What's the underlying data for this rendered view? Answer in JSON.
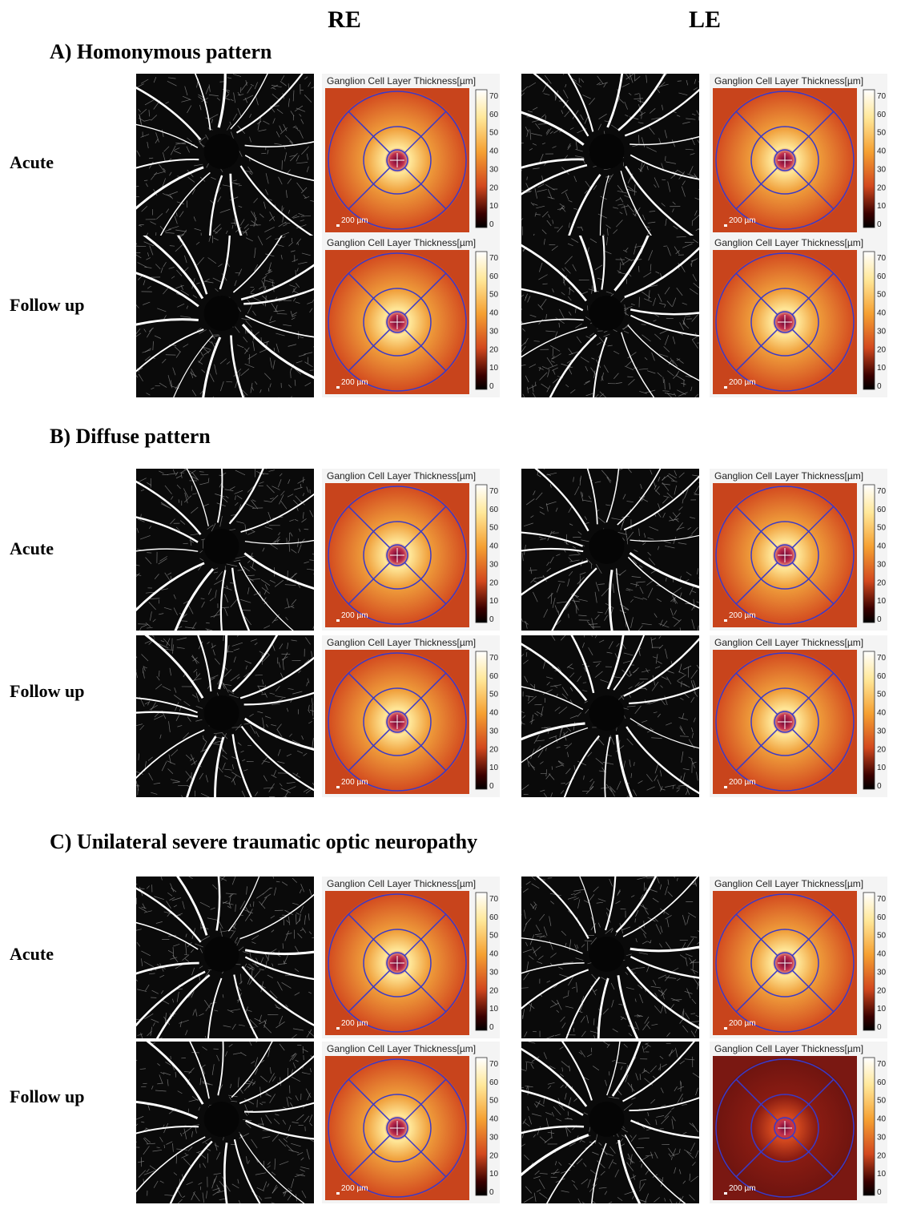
{
  "headers": {
    "re": "RE",
    "le": "LE"
  },
  "gcl_title": "Ganglion Cell Layer Thickness[µm]",
  "scale_bar_label": "200 µm",
  "colorbar_ticks": [
    "70",
    "60",
    "50",
    "40",
    "30",
    "20",
    "10",
    "0"
  ],
  "sections": [
    {
      "title": "A)  Homonymous pattern",
      "rows": [
        {
          "label": "Acute",
          "panels": [
            {
              "eye": "RE",
              "gcl_level": 0.85
            },
            {
              "eye": "LE",
              "gcl_level": 0.85
            }
          ]
        },
        {
          "label": "Follow up",
          "panels": [
            {
              "eye": "RE",
              "gcl_level": 0.6
            },
            {
              "eye": "LE",
              "gcl_level": 0.6
            }
          ]
        }
      ]
    },
    {
      "title": "B)  Diffuse pattern",
      "rows": [
        {
          "label": "Acute",
          "panels": [
            {
              "eye": "RE",
              "gcl_level": 0.8
            },
            {
              "eye": "LE",
              "gcl_level": 0.8
            }
          ]
        },
        {
          "label": "Follow up",
          "panels": [
            {
              "eye": "RE",
              "gcl_level": 0.65
            },
            {
              "eye": "LE",
              "gcl_level": 0.65
            }
          ]
        }
      ]
    },
    {
      "title": "C)  Unilateral severe traumatic optic neuropathy",
      "rows": [
        {
          "label": "Acute",
          "panels": [
            {
              "eye": "RE",
              "gcl_level": 0.9
            },
            {
              "eye": "LE",
              "gcl_level": 0.9
            }
          ]
        },
        {
          "label": "Follow up",
          "panels": [
            {
              "eye": "RE",
              "gcl_level": 0.9
            },
            {
              "eye": "LE",
              "gcl_level": 0.15
            }
          ]
        }
      ]
    }
  ],
  "colors": {
    "heat_low": "#3a0000",
    "heat_mid": "#d2481e",
    "heat_high": "#ffe89a",
    "ring": "#3a3ac8"
  }
}
